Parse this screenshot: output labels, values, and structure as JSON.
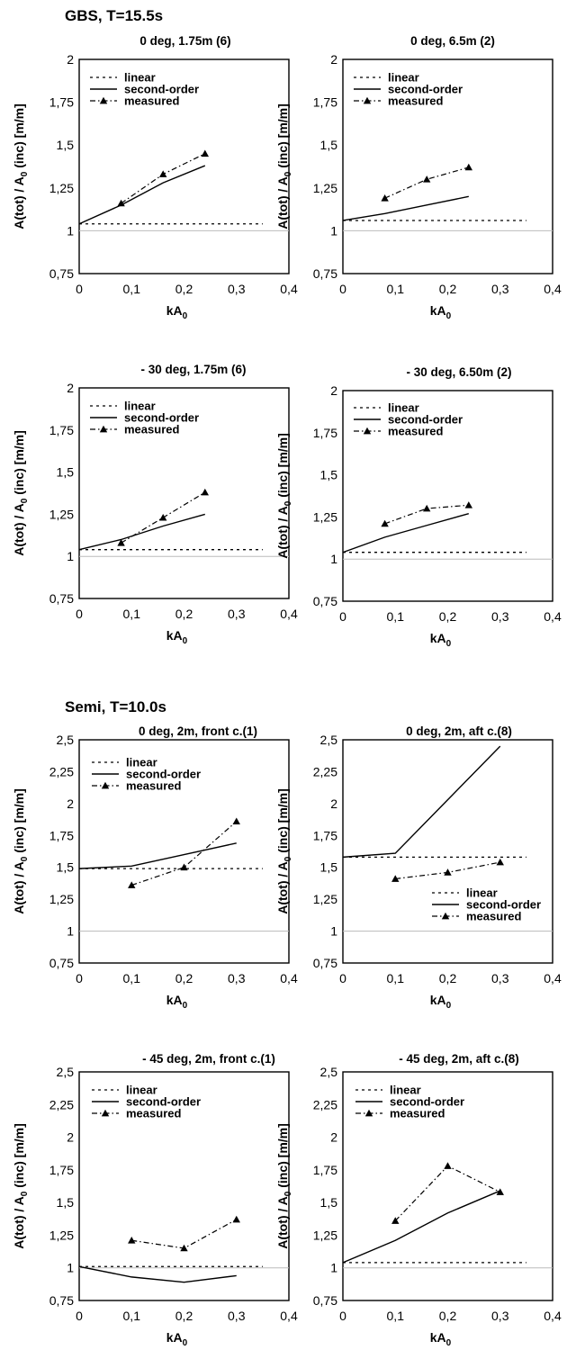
{
  "sections": [
    {
      "title": "GBS,  T=15.5s"
    },
    {
      "title": "Semi,  T=10.0s"
    }
  ],
  "ylabel_prefix": "A(tot) / A",
  "ylabel_sub": "0",
  "ylabel_suffix": " (inc) [m/m]",
  "xlabel_main": "kA",
  "xlabel_sub": "0",
  "legend_labels": {
    "linear": "linear",
    "second": "second-order",
    "measured": "measured"
  },
  "chart_data": [
    {
      "type": "line",
      "title": "0 deg, 1.75m (6)",
      "xlim": [
        0,
        0.4
      ],
      "ylim": [
        0.75,
        2.0
      ],
      "xticks": [
        "0",
        "0,1",
        "0,2",
        "0,3",
        "0,4"
      ],
      "yticks": [
        "0,75",
        "1",
        "1,25",
        "1,5",
        "1,75",
        "2"
      ],
      "series": [
        {
          "name": "linear",
          "x": [
            0,
            0.35
          ],
          "y": [
            1.04,
            1.04
          ]
        },
        {
          "name": "second-order",
          "x": [
            0,
            0.08,
            0.16,
            0.24
          ],
          "y": [
            1.04,
            1.15,
            1.28,
            1.38
          ]
        },
        {
          "name": "measured",
          "x": [
            0.08,
            0.16,
            0.24
          ],
          "y": [
            1.16,
            1.33,
            1.45
          ]
        }
      ]
    },
    {
      "type": "line",
      "title": "0 deg, 6.5m (2)",
      "xlim": [
        0,
        0.4
      ],
      "ylim": [
        0.75,
        2.0
      ],
      "xticks": [
        "0",
        "0,1",
        "0,2",
        "0,3",
        "0,4"
      ],
      "yticks": [
        "0,75",
        "1",
        "1,25",
        "1,5",
        "1,75",
        "2"
      ],
      "series": [
        {
          "name": "linear",
          "x": [
            0,
            0.35
          ],
          "y": [
            1.06,
            1.06
          ]
        },
        {
          "name": "second-order",
          "x": [
            0,
            0.08,
            0.16,
            0.24
          ],
          "y": [
            1.06,
            1.1,
            1.15,
            1.2
          ]
        },
        {
          "name": "measured",
          "x": [
            0.08,
            0.16,
            0.24
          ],
          "y": [
            1.19,
            1.3,
            1.37
          ]
        }
      ]
    },
    {
      "type": "line",
      "title": "- 30 deg, 1.75m (6)",
      "xlim": [
        0,
        0.4
      ],
      "ylim": [
        0.75,
        2.0
      ],
      "xticks": [
        "0",
        "0,1",
        "0,2",
        "0,3",
        "0,4"
      ],
      "yticks": [
        "0,75",
        "1",
        "1,25",
        "1,5",
        "1,75",
        "2"
      ],
      "series": [
        {
          "name": "linear",
          "x": [
            0,
            0.35
          ],
          "y": [
            1.04,
            1.04
          ]
        },
        {
          "name": "second-order",
          "x": [
            0,
            0.08,
            0.16,
            0.24
          ],
          "y": [
            1.04,
            1.1,
            1.18,
            1.25
          ]
        },
        {
          "name": "measured",
          "x": [
            0.08,
            0.16,
            0.24
          ],
          "y": [
            1.08,
            1.23,
            1.38
          ]
        }
      ]
    },
    {
      "type": "line",
      "title": "- 30 deg, 6.50m (2)",
      "xlim": [
        0,
        0.4
      ],
      "ylim": [
        0.75,
        2.0
      ],
      "xticks": [
        "0",
        "0,1",
        "0,2",
        "0,3",
        "0,4"
      ],
      "yticks": [
        "0,75",
        "1",
        "1,25",
        "1,5",
        "1,75",
        "2"
      ],
      "series": [
        {
          "name": "linear",
          "x": [
            0,
            0.35
          ],
          "y": [
            1.04,
            1.04
          ]
        },
        {
          "name": "second-order",
          "x": [
            0,
            0.08,
            0.16,
            0.24
          ],
          "y": [
            1.04,
            1.13,
            1.2,
            1.27
          ]
        },
        {
          "name": "measured",
          "x": [
            0.08,
            0.16,
            0.24
          ],
          "y": [
            1.21,
            1.3,
            1.32
          ]
        }
      ]
    },
    {
      "type": "line",
      "title": "0 deg, 2m, front c.(1)",
      "xlim": [
        0,
        0.4
      ],
      "ylim": [
        0.75,
        2.5
      ],
      "xticks": [
        "0",
        "0,1",
        "0,2",
        "0,3",
        "0,4"
      ],
      "yticks": [
        "0,75",
        "1",
        "1,25",
        "1,5",
        "1,75",
        "2",
        "2,25",
        "2,5"
      ],
      "series": [
        {
          "name": "linear",
          "x": [
            0,
            0.35
          ],
          "y": [
            1.49,
            1.49
          ]
        },
        {
          "name": "second-order",
          "x": [
            0,
            0.1,
            0.2,
            0.3
          ],
          "y": [
            1.49,
            1.51,
            1.6,
            1.69
          ]
        },
        {
          "name": "measured",
          "x": [
            0.1,
            0.2,
            0.3
          ],
          "y": [
            1.36,
            1.5,
            1.86
          ]
        }
      ]
    },
    {
      "type": "line",
      "title": "0 deg, 2m, aft c.(8)",
      "xlim": [
        0,
        0.4
      ],
      "ylim": [
        0.75,
        2.5
      ],
      "xticks": [
        "0",
        "0,1",
        "0,2",
        "0,3",
        "0,4"
      ],
      "yticks": [
        "0,75",
        "1",
        "1,25",
        "1,5",
        "1,75",
        "2",
        "2,25",
        "2,5"
      ],
      "legend_position": "bottom-right",
      "series": [
        {
          "name": "linear",
          "x": [
            0,
            0.35
          ],
          "y": [
            1.58,
            1.58
          ]
        },
        {
          "name": "second-order",
          "x": [
            0,
            0.1,
            0.2,
            0.3
          ],
          "y": [
            1.58,
            1.61,
            2.03,
            2.45
          ]
        },
        {
          "name": "measured",
          "x": [
            0.1,
            0.2,
            0.3
          ],
          "y": [
            1.41,
            1.46,
            1.54
          ]
        }
      ]
    },
    {
      "type": "line",
      "title": "- 45 deg, 2m, front c.(1)",
      "xlim": [
        0,
        0.4
      ],
      "ylim": [
        0.75,
        2.5
      ],
      "xticks": [
        "0",
        "0,1",
        "0,2",
        "0,3",
        "0,4"
      ],
      "yticks": [
        "0,75",
        "1",
        "1,25",
        "1,5",
        "1,75",
        "2",
        "2,25",
        "2,5"
      ],
      "series": [
        {
          "name": "linear",
          "x": [
            0,
            0.35
          ],
          "y": [
            1.01,
            1.01
          ]
        },
        {
          "name": "second-order",
          "x": [
            0,
            0.1,
            0.2,
            0.3
          ],
          "y": [
            1.01,
            0.93,
            0.89,
            0.94
          ]
        },
        {
          "name": "measured",
          "x": [
            0.1,
            0.2,
            0.3
          ],
          "y": [
            1.21,
            1.15,
            1.37
          ]
        }
      ]
    },
    {
      "type": "line",
      "title": "- 45 deg, 2m, aft c.(8)",
      "xlim": [
        0,
        0.4
      ],
      "ylim": [
        0.75,
        2.5
      ],
      "xticks": [
        "0",
        "0,1",
        "0,2",
        "0,3",
        "0,4"
      ],
      "yticks": [
        "0,75",
        "1",
        "1,25",
        "1,5",
        "1,75",
        "2",
        "2,25",
        "2,5"
      ],
      "series": [
        {
          "name": "linear",
          "x": [
            0,
            0.35
          ],
          "y": [
            1.04,
            1.04
          ]
        },
        {
          "name": "second-order",
          "x": [
            0,
            0.1,
            0.2,
            0.3
          ],
          "y": [
            1.04,
            1.21,
            1.42,
            1.59
          ]
        },
        {
          "name": "measured",
          "x": [
            0.1,
            0.2,
            0.3
          ],
          "y": [
            1.36,
            1.78,
            1.58
          ]
        }
      ]
    }
  ]
}
